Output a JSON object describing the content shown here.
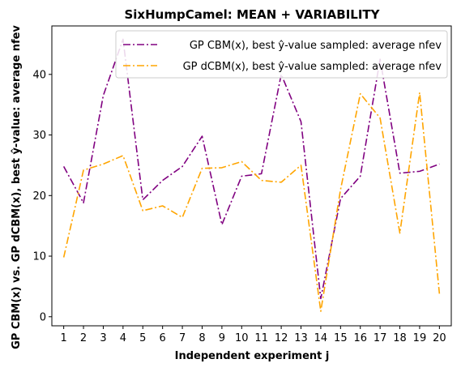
{
  "chart_data": {
    "type": "line",
    "title": "SixHumpCamel: MEAN + VARIABILITY",
    "xlabel": "Independent experiment j",
    "ylabel": "GP CBM(x) vs. GP dCBM(x), best ŷ-value: average nfev",
    "x": [
      1,
      2,
      3,
      4,
      5,
      6,
      7,
      8,
      9,
      10,
      11,
      12,
      13,
      14,
      15,
      16,
      17,
      18,
      19,
      20
    ],
    "xlim": [
      0.4,
      20.6
    ],
    "ylim": [
      -1.5,
      48
    ],
    "yticks": [
      0,
      10,
      20,
      30,
      40
    ],
    "grid": false,
    "legend_position": "upper-right",
    "series": [
      {
        "name": "GP CBM(x), best ŷ-value sampled: average nfev",
        "color": "#800080",
        "linestyle": "dashdot",
        "values": [
          24.8,
          18.8,
          36.5,
          45.8,
          19.3,
          22.5,
          24.8,
          29.8,
          15.2,
          23.2,
          23.6,
          40.0,
          32.2,
          3.0,
          19.5,
          23.2,
          42.5,
          23.7,
          24.0,
          25.2
        ]
      },
      {
        "name": "GP dCBM(x), best ŷ-value sampled: average nfev",
        "color": "#FFA500",
        "linestyle": "dashdot",
        "values": [
          9.8,
          24.2,
          25.2,
          26.6,
          17.5,
          18.3,
          16.4,
          24.5,
          24.6,
          25.6,
          22.5,
          22.2,
          25.0,
          0.9,
          21.0,
          36.8,
          32.8,
          13.8,
          37.0,
          3.8
        ]
      }
    ]
  }
}
